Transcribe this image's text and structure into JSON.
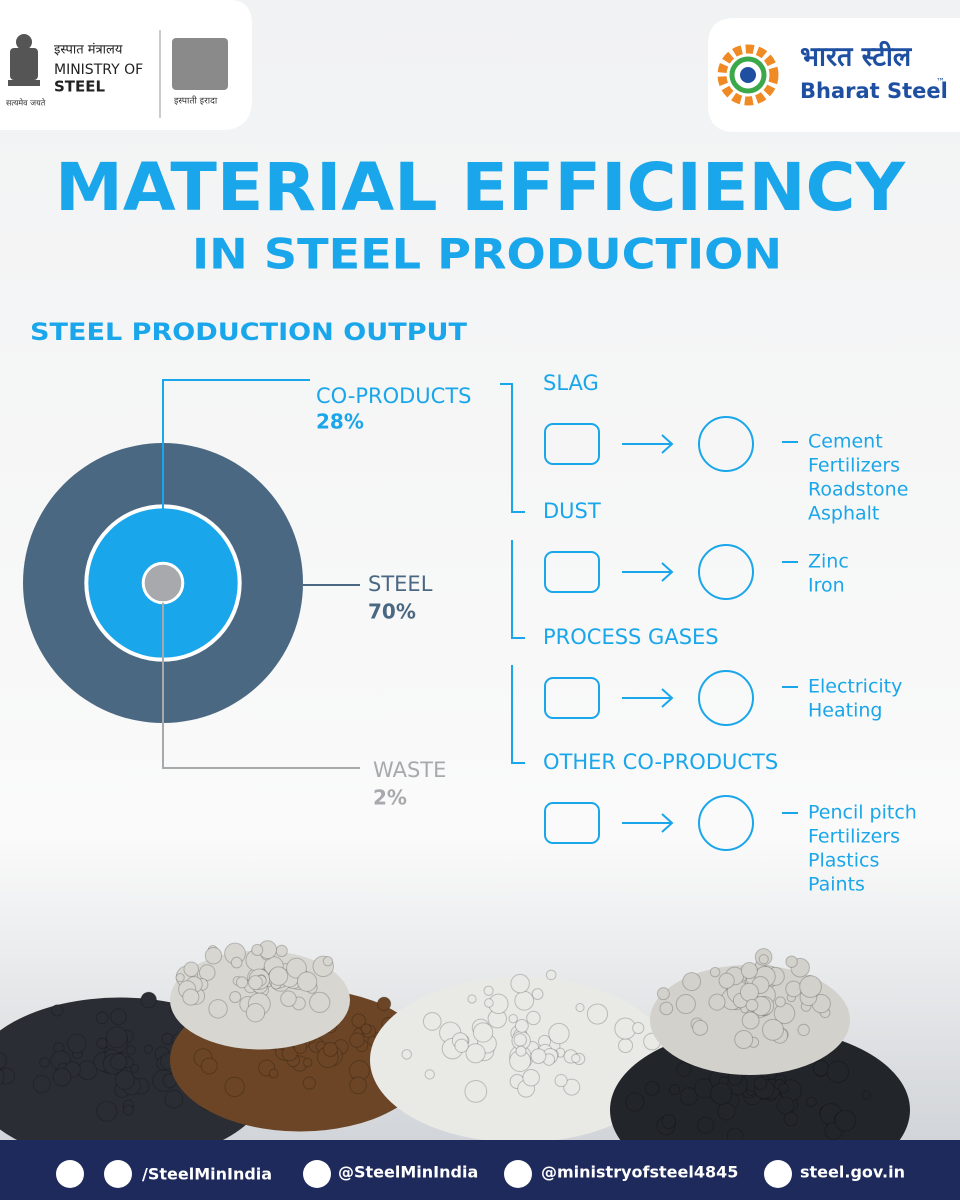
{
  "header": {
    "ministry_hindi": "इस्पात मंत्रालय",
    "ministry_line1": "MINISTRY OF",
    "ministry_line2": "STEEL",
    "motto": "सत्यमेव जयते",
    "tagline": "इस्पाती इरादा",
    "brand_hindi": "भारत स्टील",
    "brand": "Bharat Steel",
    "tm": "™"
  },
  "title": {
    "line1": "MATERIAL EFFICIENCY",
    "line2": "IN STEEL PRODUCTION"
  },
  "chart_data": {
    "type": "rings",
    "title": "STEEL PRODUCTION OUTPUT",
    "categories": [
      "CO-PRODUCTS",
      "STEEL",
      "WASTE"
    ],
    "values": [
      28,
      70,
      2
    ],
    "value_labels": [
      "28%",
      "70%",
      "2%"
    ],
    "colors": [
      "#1aa6ea",
      "#4b6882",
      "#a7a9ac"
    ]
  },
  "flows": [
    {
      "name": "SLAG",
      "outputs": [
        "Cement",
        "Fertilizers",
        "Roadstone",
        "Asphalt"
      ]
    },
    {
      "name": "DUST",
      "outputs": [
        "Zinc",
        "Iron"
      ]
    },
    {
      "name": "PROCESS GASES",
      "outputs": [
        "Electricity",
        "Heating"
      ]
    },
    {
      "name": "OTHER CO-PRODUCTS",
      "outputs": [
        "Pencil pitch",
        "Fertilizers",
        "Plastics",
        "Paints"
      ]
    }
  ],
  "footer": {
    "facebook_instagram": "/SteelMinIndia",
    "x": "@SteelMinIndia",
    "youtube": "@ministryofsteel4845",
    "web": "steel.gov.in"
  }
}
